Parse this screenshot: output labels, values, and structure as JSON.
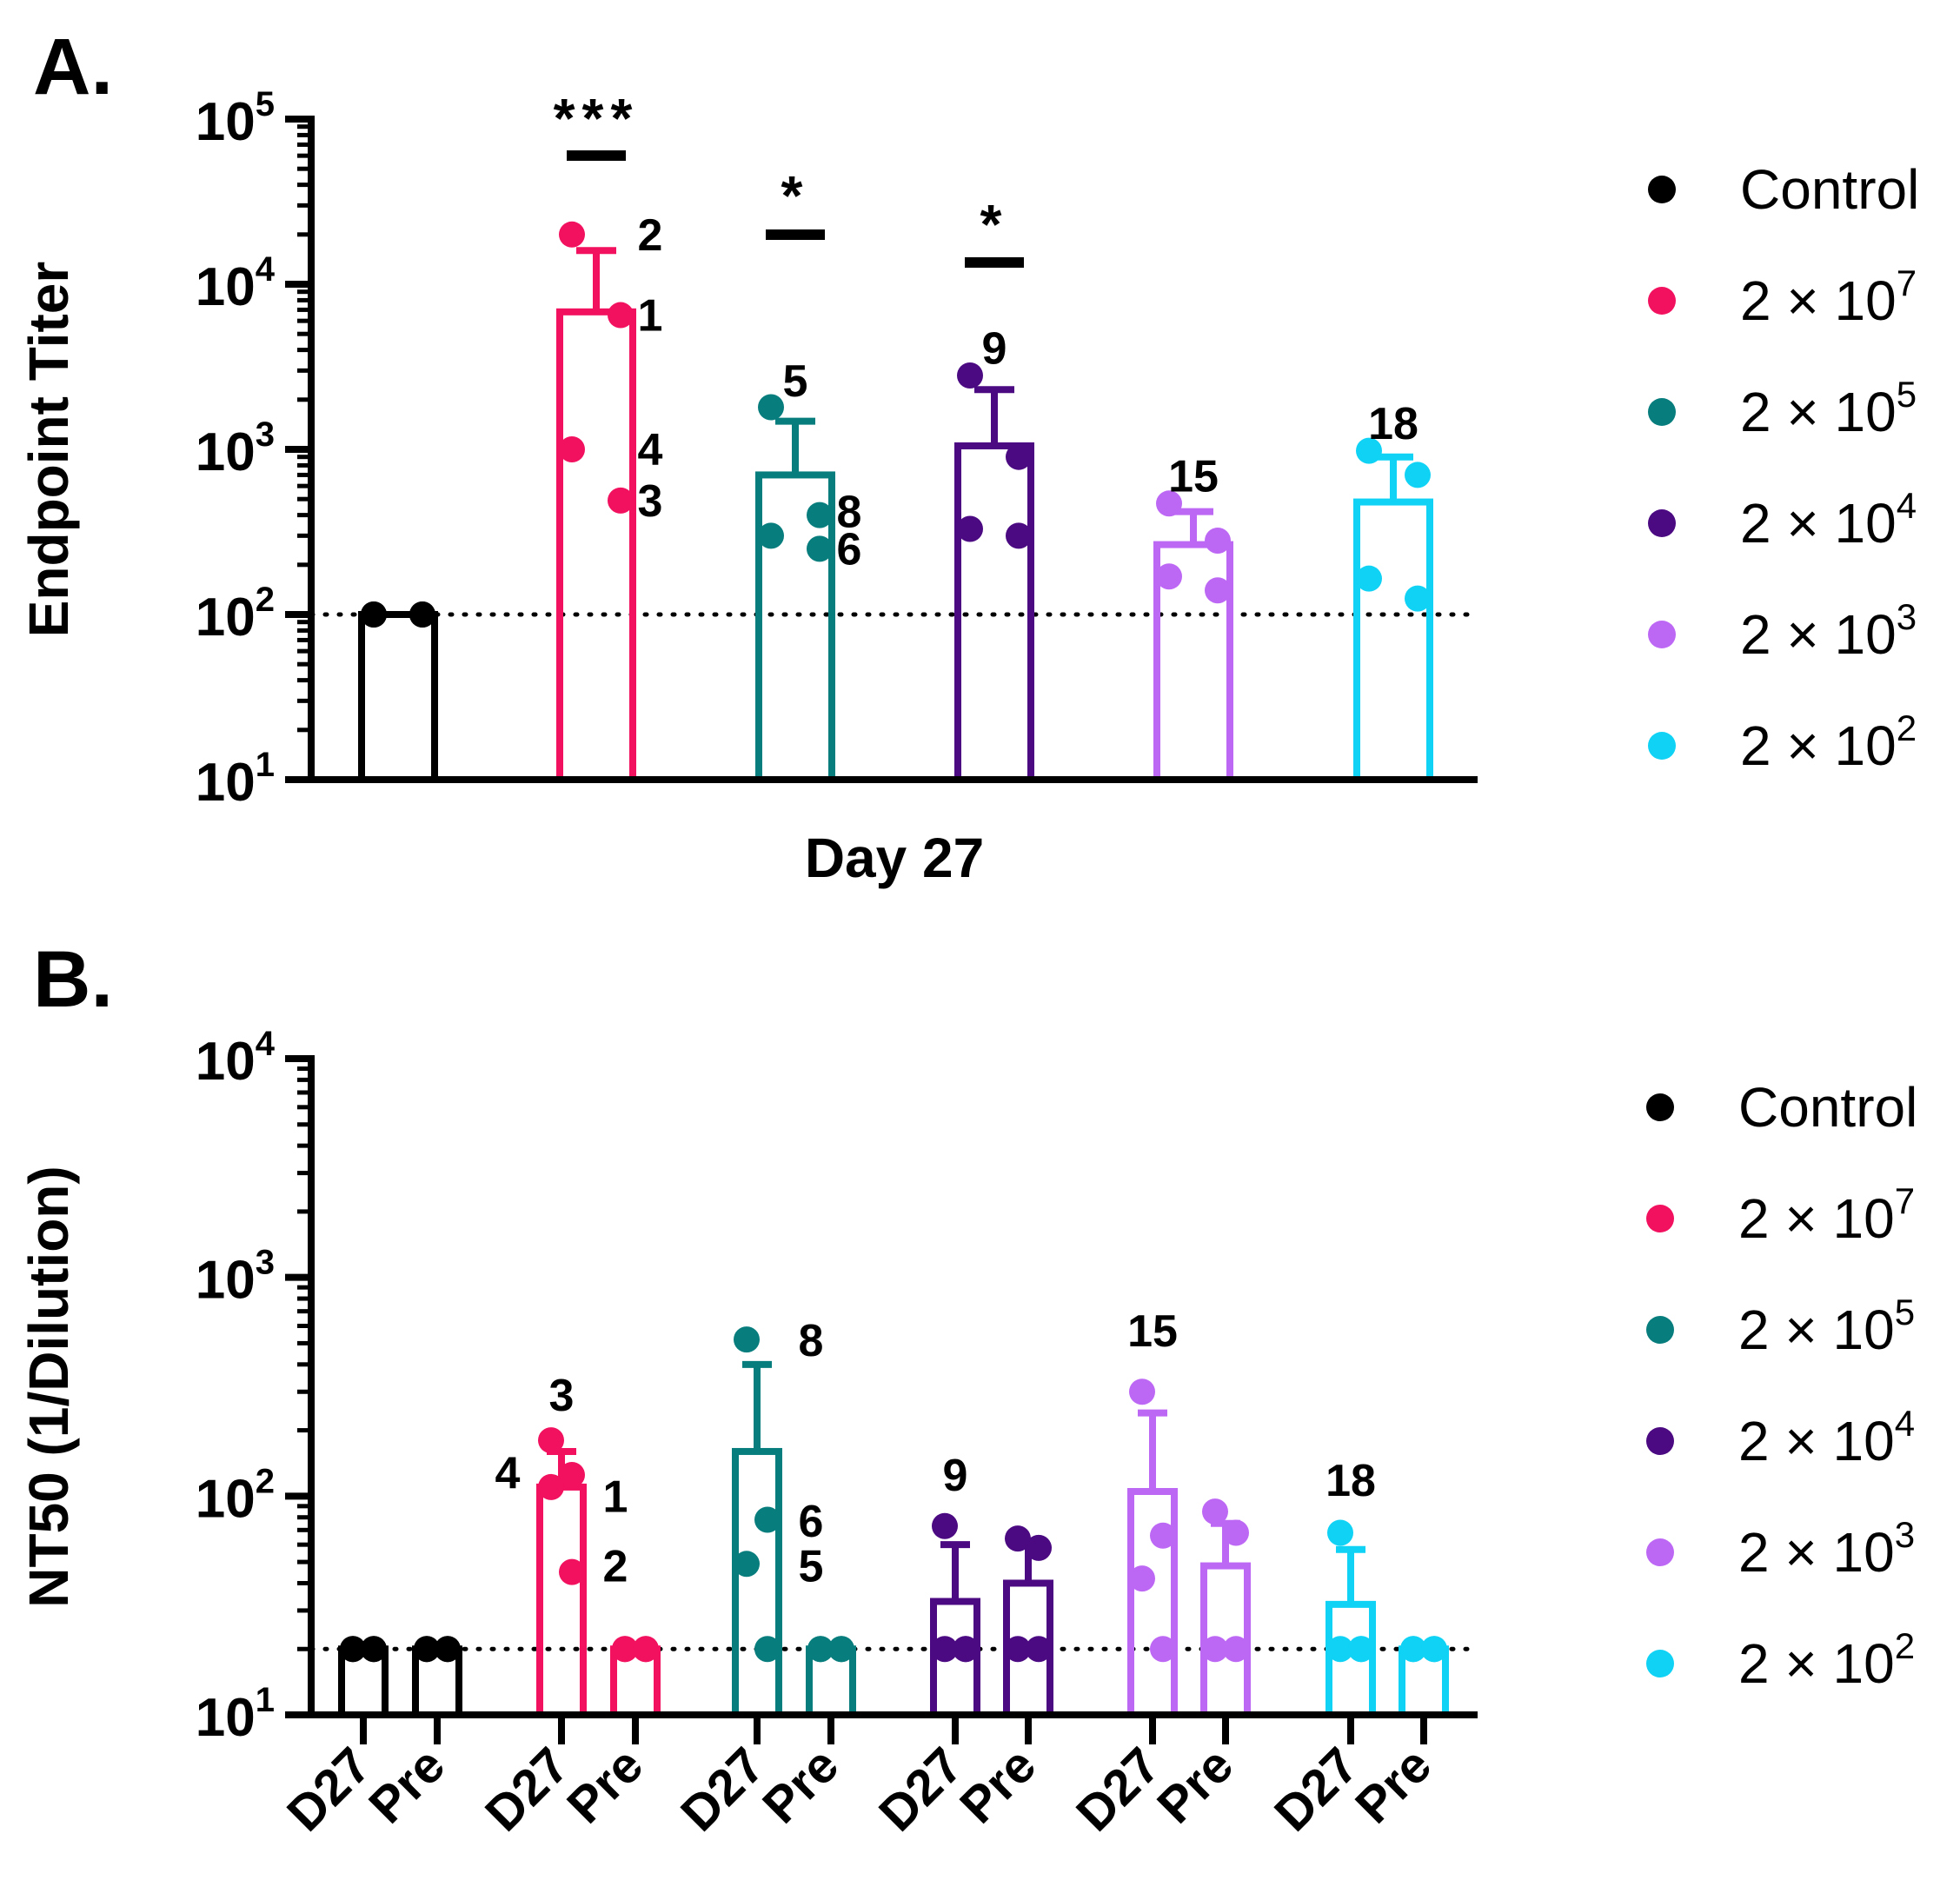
{
  "colors": {
    "control": "#000000",
    "dose_2e7": "#f2115f",
    "dose_2e5": "#087d7d",
    "dose_2e4": "#4b0a82",
    "dose_2e3": "#bd68f5",
    "dose_2e2": "#0fd2f5"
  },
  "chart_data": [
    {
      "panel": "A.",
      "type": "bar",
      "title": "",
      "xlabel": "Day 27",
      "ylabel": "Endpoint Titer",
      "yscale": "log",
      "ylim": [
        10,
        100000
      ],
      "y_ticks": [
        {
          "value": 10,
          "base": "10",
          "exp": "1"
        },
        {
          "value": 100,
          "base": "10",
          "exp": "2"
        },
        {
          "value": 1000,
          "base": "10",
          "exp": "3"
        },
        {
          "value": 10000,
          "base": "10",
          "exp": "4"
        },
        {
          "value": 100000,
          "base": "10",
          "exp": "5"
        }
      ],
      "reference_line": 100,
      "legend": {
        "placement": "right",
        "entries": [
          {
            "key": "control",
            "label": "Control",
            "exp": ""
          },
          {
            "key": "dose_2e7",
            "label": "2 × 10",
            "exp": "7"
          },
          {
            "key": "dose_2e5",
            "label": "2 × 10",
            "exp": "5"
          },
          {
            "key": "dose_2e4",
            "label": "2 × 10",
            "exp": "4"
          },
          {
            "key": "dose_2e3",
            "label": "2 × 10",
            "exp": "3"
          },
          {
            "key": "dose_2e2",
            "label": "2 × 10",
            "exp": "2"
          }
        ]
      },
      "series": [
        {
          "name": "Control",
          "color_key": "control",
          "mean": 100,
          "sd_top": null,
          "points": [
            100,
            100,
            100,
            100
          ]
        },
        {
          "name": "2 × 10^7",
          "color_key": "dose_2e7",
          "mean": 6800,
          "sd_top": 16000,
          "points": [
            20000,
            6500,
            1000,
            490
          ]
        },
        {
          "name": "2 × 10^5",
          "color_key": "dose_2e5",
          "mean": 700,
          "sd_top": 1480,
          "points": [
            1800,
            400,
            300,
            250
          ]
        },
        {
          "name": "2 × 10^4",
          "color_key": "dose_2e4",
          "mean": 1050,
          "sd_top": 2300,
          "points": [
            2800,
            900,
            330,
            300
          ]
        },
        {
          "name": "2 × 10^3",
          "color_key": "dose_2e3",
          "mean": 265,
          "sd_top": 420,
          "points": [
            470,
            280,
            170,
            140
          ]
        },
        {
          "name": "2 × 10^2",
          "color_key": "dose_2e2",
          "mean": 480,
          "sd_top": 900,
          "points": [
            980,
            700,
            165,
            125
          ]
        }
      ],
      "significance": [
        {
          "group_index": 1,
          "label": "***"
        },
        {
          "group_index": 2,
          "label": "*"
        },
        {
          "group_index": 3,
          "label": "*"
        }
      ],
      "annotations": [
        {
          "group_index": 1,
          "text": "2",
          "near_value": 20000,
          "side": "right"
        },
        {
          "group_index": 1,
          "text": "1",
          "near_value": 6500,
          "side": "right"
        },
        {
          "group_index": 1,
          "text": "4",
          "near_value": 1000,
          "side": "right"
        },
        {
          "group_index": 1,
          "text": "3",
          "near_value": 490,
          "side": "right"
        },
        {
          "group_index": 2,
          "text": "5",
          "near_value": 2600,
          "side": "top"
        },
        {
          "group_index": 2,
          "text": "8",
          "near_value": 420,
          "side": "right"
        },
        {
          "group_index": 2,
          "text": "6",
          "near_value": 250,
          "side": "right"
        },
        {
          "group_index": 3,
          "text": "9",
          "near_value": 4100,
          "side": "top"
        },
        {
          "group_index": 4,
          "text": "15",
          "near_value": 690,
          "side": "top"
        },
        {
          "group_index": 5,
          "text": "18",
          "near_value": 1440,
          "side": "top"
        }
      ]
    },
    {
      "panel": "B.",
      "type": "bar",
      "title": "",
      "xlabel": "",
      "ylabel": "NT50 (1/Dilution)",
      "yscale": "log",
      "ylim": [
        10,
        10000
      ],
      "y_ticks": [
        {
          "value": 10,
          "base": "10",
          "exp": "1"
        },
        {
          "value": 100,
          "base": "10",
          "exp": "2"
        },
        {
          "value": 1000,
          "base": "10",
          "exp": "3"
        },
        {
          "value": 10000,
          "base": "10",
          "exp": "4"
        }
      ],
      "reference_line": 20,
      "categories": [
        "D27",
        "Pre",
        "D27",
        "Pre",
        "D27",
        "Pre",
        "D27",
        "Pre",
        "D27",
        "Pre",
        "D27",
        "Pre"
      ],
      "legend": {
        "placement": "right",
        "entries": [
          {
            "key": "control",
            "label": "Control",
            "exp": ""
          },
          {
            "key": "dose_2e7",
            "label": "2 × 10",
            "exp": "7"
          },
          {
            "key": "dose_2e5",
            "label": "2 × 10",
            "exp": "5"
          },
          {
            "key": "dose_2e4",
            "label": "2 × 10",
            "exp": "4"
          },
          {
            "key": "dose_2e3",
            "label": "2 × 10",
            "exp": "3"
          },
          {
            "key": "dose_2e2",
            "label": "2 × 10",
            "exp": "2"
          }
        ]
      },
      "series": [
        {
          "name": "Control D27",
          "color_key": "control",
          "mean": 20,
          "sd_top": null,
          "points": [
            20,
            20,
            20,
            20
          ]
        },
        {
          "name": "Control Pre",
          "color_key": "control",
          "mean": 20,
          "sd_top": null,
          "points": [
            20,
            20,
            20,
            20
          ]
        },
        {
          "name": "2 × 10^7 D27",
          "color_key": "dose_2e7",
          "mean": 110,
          "sd_top": 160,
          "points": [
            180,
            125,
            110,
            45
          ]
        },
        {
          "name": "2 × 10^7 Pre",
          "color_key": "dose_2e7",
          "mean": 20,
          "sd_top": null,
          "points": [
            20,
            20,
            20,
            20
          ]
        },
        {
          "name": "2 × 10^5 D27",
          "color_key": "dose_2e5",
          "mean": 160,
          "sd_top": 400,
          "points": [
            520,
            78,
            49,
            20
          ]
        },
        {
          "name": "2 × 10^5 Pre",
          "color_key": "dose_2e5",
          "mean": 20,
          "sd_top": null,
          "points": [
            20,
            20,
            20,
            20
          ]
        },
        {
          "name": "2 × 10^4 D27",
          "color_key": "dose_2e4",
          "mean": 33,
          "sd_top": 60,
          "points": [
            73,
            20,
            20,
            20
          ]
        },
        {
          "name": "2 × 10^4 Pre",
          "color_key": "dose_2e4",
          "mean": 40,
          "sd_top": 60,
          "points": [
            64,
            58,
            20,
            20
          ]
        },
        {
          "name": "2 × 10^3 D27",
          "color_key": "dose_2e3",
          "mean": 105,
          "sd_top": 240,
          "points": [
            300,
            66,
            42,
            20
          ]
        },
        {
          "name": "2 × 10^3 Pre",
          "color_key": "dose_2e3",
          "mean": 48,
          "sd_top": 75,
          "points": [
            85,
            68,
            20,
            20
          ]
        },
        {
          "name": "2 × 10^2 D27",
          "color_key": "dose_2e2",
          "mean": 32,
          "sd_top": 57,
          "points": [
            68,
            20,
            20,
            20
          ]
        },
        {
          "name": "2 × 10^2 Pre",
          "color_key": "dose_2e2",
          "mean": 20,
          "sd_top": null,
          "points": [
            20,
            20,
            20,
            20
          ]
        }
      ],
      "annotations": [
        {
          "bar_index": 2,
          "text": "3",
          "near_value": 290,
          "side": "top"
        },
        {
          "bar_index": 2,
          "text": "4",
          "near_value": 128,
          "side": "left"
        },
        {
          "bar_index": 2,
          "text": "1",
          "near_value": 100,
          "side": "right"
        },
        {
          "bar_index": 2,
          "text": "2",
          "near_value": 48,
          "side": "right"
        },
        {
          "bar_index": 4,
          "text": "8",
          "near_value": 515,
          "side": "right"
        },
        {
          "bar_index": 4,
          "text": "6",
          "near_value": 77,
          "side": "right"
        },
        {
          "bar_index": 4,
          "text": "5",
          "near_value": 48,
          "side": "right"
        },
        {
          "bar_index": 6,
          "text": "9",
          "near_value": 125,
          "side": "top"
        },
        {
          "bar_index": 8,
          "text": "15",
          "near_value": 570,
          "side": "top"
        },
        {
          "bar_index": 10,
          "text": "18",
          "near_value": 118,
          "side": "top"
        }
      ]
    }
  ]
}
